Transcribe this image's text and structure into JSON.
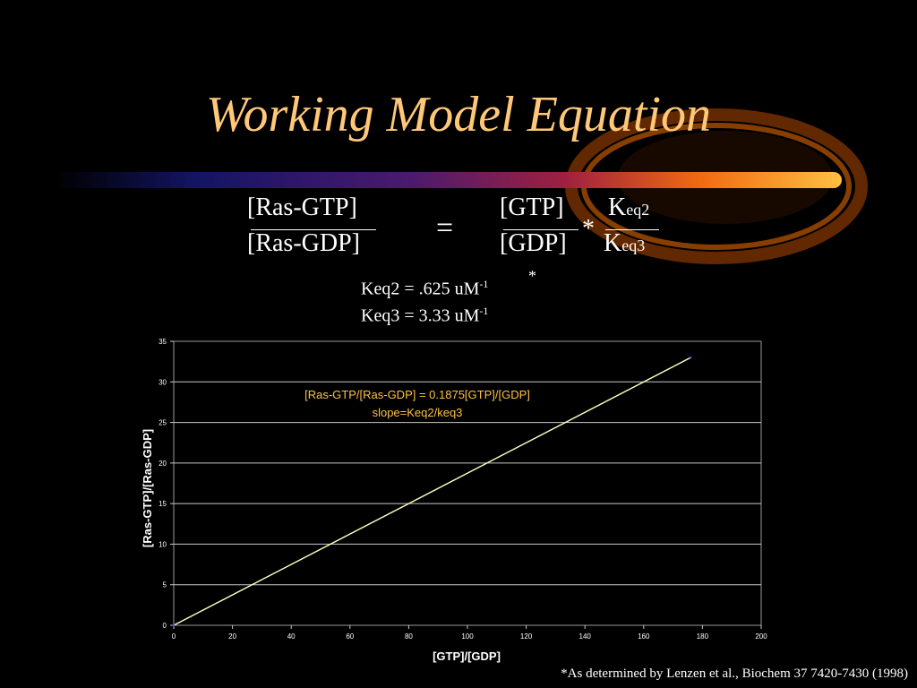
{
  "slide": {
    "title": "Working Model Equation",
    "footnote": "*As determined by Lenzen et al., Biochem 37 7420-7430 (1998)"
  },
  "equation": {
    "left_numerator": "[Ras-GTP]",
    "left_denominator": "[Ras-GDP]",
    "equals": "=",
    "right_numerator": "[GTP]",
    "right_denominator": "[GDP]",
    "multiply": "*",
    "k_symbol": "K",
    "k_num_sub": "eq2",
    "k_den_sub": "eq3"
  },
  "constants": {
    "keq2_text": "Keq2 = .625 uM",
    "keq2_exp": "-1",
    "keq2_mark": "*",
    "keq3_text": "Keq3 = 3.33 uM",
    "keq3_exp": "-1"
  },
  "colors": {
    "title": "#ffc878",
    "line": "#ffffc0",
    "annotation": "#ffc040",
    "grid": "#c8c8c8",
    "axis_text": "#ffffff"
  },
  "chart_data": {
    "type": "line",
    "x": [
      0,
      176
    ],
    "series": [
      {
        "values": [
          0,
          33
        ]
      }
    ],
    "xlim": [
      0,
      200
    ],
    "ylim": [
      0,
      35
    ],
    "xticks": [
      "0",
      "20",
      "40",
      "60",
      "80",
      "100",
      "120",
      "140",
      "160",
      "180",
      "200"
    ],
    "yticks": [
      "0",
      "5",
      "10",
      "15",
      "20",
      "25",
      "30",
      "35"
    ],
    "xlabel": "[GTP]/[GDP]",
    "ylabel": "[Ras-GTP]/[Ras-GDP]",
    "annotations": [
      "[Ras-GTP/[Ras-GDP] = 0.1875[GTP]/[GDP]",
      "slope=Keq2/keq3"
    ],
    "grid": "horizontal"
  }
}
